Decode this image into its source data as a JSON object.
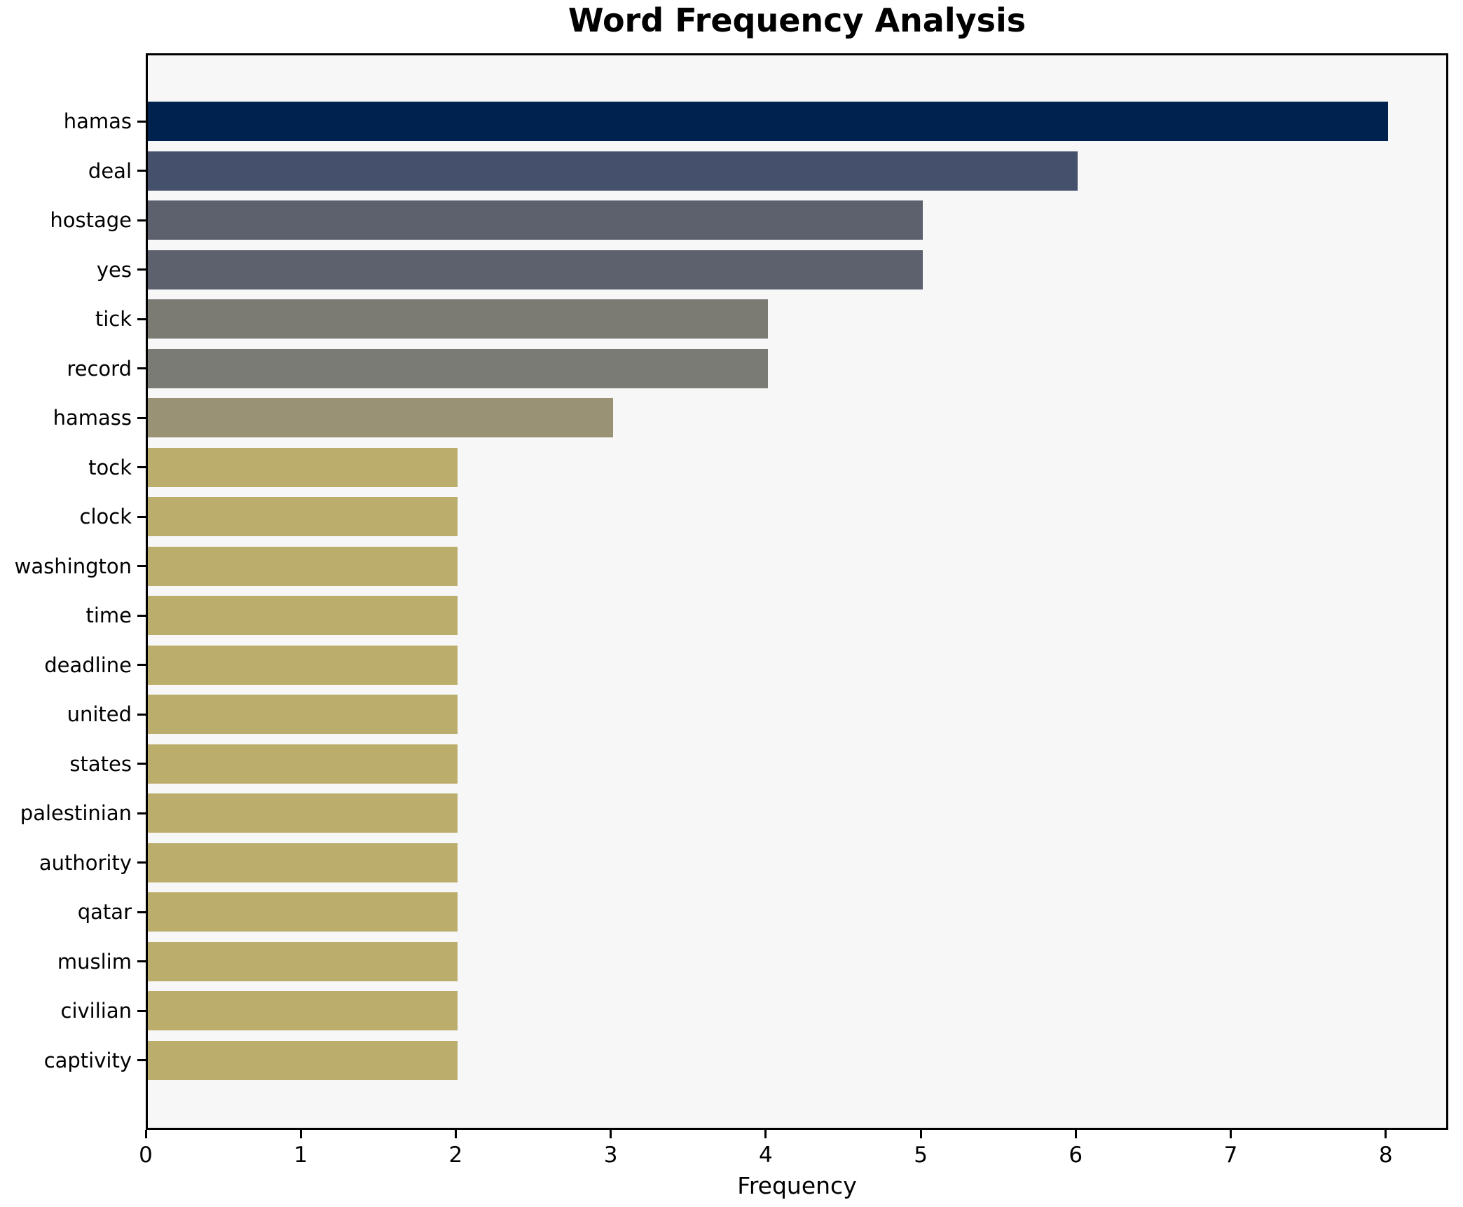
{
  "chart_data": {
    "type": "bar",
    "orientation": "horizontal",
    "title": "Word Frequency Analysis",
    "xlabel": "Frequency",
    "ylabel": "",
    "categories": [
      "hamas",
      "deal",
      "hostage",
      "yes",
      "tick",
      "record",
      "hamass",
      "tock",
      "clock",
      "washington",
      "time",
      "deadline",
      "united",
      "states",
      "palestinian",
      "authority",
      "qatar",
      "muslim",
      "civilian",
      "captivity"
    ],
    "values": [
      8,
      6,
      5,
      5,
      4,
      4,
      3,
      2,
      2,
      2,
      2,
      2,
      2,
      2,
      2,
      2,
      2,
      2,
      2,
      2
    ],
    "bar_colors": [
      "#00224e",
      "#45506c",
      "#5d616e",
      "#5d616e",
      "#7b7a73",
      "#7b7b76",
      "#9a9274",
      "#bbad6c",
      "#bbad6c",
      "#bbad6c",
      "#bbad6c",
      "#bbad6c",
      "#bbad6c",
      "#bbad6c",
      "#bbad6c",
      "#bbad6c",
      "#bbad6c",
      "#bbad6c",
      "#bbad6c",
      "#bbad6c"
    ],
    "xticks": [
      0,
      1,
      2,
      3,
      4,
      5,
      6,
      7,
      8
    ],
    "xlim": [
      0,
      8.39
    ],
    "grid": false,
    "legend": false,
    "plot_bg": "#f7f7f7",
    "figure_bg": "#ffffff",
    "spine_color": "#000000"
  }
}
